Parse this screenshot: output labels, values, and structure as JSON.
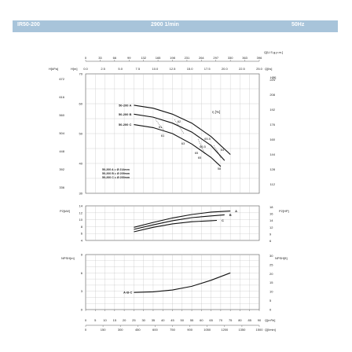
{
  "header": {
    "model": "IR50-200",
    "speed": "2900 1/min",
    "frequency": "50Hz"
  },
  "chart_data": [
    {
      "type": "line",
      "name": "head",
      "top_axis": {
        "label": "Q[U.S.g.p.m.]",
        "ticks": [
          "0",
          "33",
          "66",
          "99",
          "132",
          "165",
          "198",
          "231",
          "264",
          "297",
          "330",
          "363",
          "396"
        ]
      },
      "flow_axis2": {
        "label": "Q[l/s]",
        "ticks": [
          "0.0",
          "2.5",
          "5.0",
          "7.5",
          "10.0",
          "12.5",
          "15.0",
          "17.5",
          "20.0",
          "22.5",
          "25.0"
        ]
      },
      "ylabel_left2": "H[kPa]",
      "ylabel_left": "H[m]",
      "ylabel_right": "H[ft]",
      "yticks": [
        30,
        40,
        50,
        60,
        70
      ],
      "ylim": [
        30,
        70
      ],
      "kpa_ticks": [
        "672",
        "616",
        "560",
        "504",
        "448",
        "392",
        "336"
      ],
      "ft_ticks": [
        "224",
        "208",
        "192",
        "176",
        "160",
        "144",
        "128",
        "112"
      ],
      "efficiency_label": "η [%]",
      "series": [
        {
          "name": "50-200 A",
          "x": [
            25,
            35,
            45,
            55,
            65,
            75
          ],
          "values": [
            59.5,
            58.5,
            56.5,
            53.5,
            49,
            43
          ]
        },
        {
          "name": "50-200 B",
          "x": [
            25,
            35,
            45,
            55,
            65,
            72
          ],
          "values": [
            56.5,
            55.5,
            53.5,
            50.5,
            46,
            41
          ]
        },
        {
          "name": "50-200 C",
          "x": [
            25,
            35,
            45,
            55,
            65,
            70
          ],
          "values": [
            53,
            52,
            50,
            46.5,
            42,
            39
          ]
        }
      ],
      "efficiency_labels": [
        "61",
        "62",
        "65.5",
        "64",
        "61",
        "63",
        "65",
        "58",
        "65.5",
        "65"
      ],
      "impeller_notes": [
        "50-200 A = Ø 214mm",
        "50-200 B = Ø 209mm",
        "50-200 C = Ø 200mm"
      ]
    },
    {
      "type": "line",
      "name": "power",
      "ylabel": "P2[kW]",
      "ylabel_right": "P2[HP]",
      "yticks": [
        "14",
        "12",
        "10",
        "8",
        "6",
        "4"
      ],
      "ylim": [
        4,
        14
      ],
      "right_ticks": [
        "18",
        "16",
        "14",
        "12",
        "9",
        "6"
      ],
      "series": [
        {
          "name": "A",
          "x": [
            25,
            35,
            45,
            55,
            65,
            75
          ],
          "values": [
            7.8,
            9.2,
            10.5,
            11.5,
            12.2,
            12.5
          ]
        },
        {
          "name": "B",
          "x": [
            25,
            35,
            45,
            55,
            65,
            72
          ],
          "values": [
            7.2,
            8.5,
            9.7,
            10.6,
            11.1,
            11.4
          ]
        },
        {
          "name": "C",
          "x": [
            25,
            35,
            45,
            55,
            65,
            68
          ],
          "values": [
            6.5,
            7.8,
            8.8,
            9.4,
            9.7,
            9.8
          ]
        }
      ]
    },
    {
      "type": "line",
      "name": "npsh",
      "ylabel": "NPSH[m]",
      "ylabel_right": "NPSH[ft]",
      "yticks": [
        "9",
        "6",
        "3",
        "0"
      ],
      "ylim": [
        0,
        9
      ],
      "right_ticks": [
        "30",
        "25",
        "20",
        "15",
        "10",
        "5",
        "0"
      ],
      "series": [
        {
          "name": "A-B-C",
          "x": [
            25,
            35,
            45,
            55,
            65,
            75
          ],
          "values": [
            2.8,
            2.9,
            3.2,
            3.8,
            4.8,
            6.0
          ]
        }
      ],
      "xlabel": "Q[m³/h]",
      "xlabel2": "Q[l/min]",
      "xticks": [
        "0",
        "5",
        "10",
        "15",
        "20",
        "25",
        "30",
        "35",
        "40",
        "45",
        "50",
        "55",
        "60",
        "65",
        "70",
        "75",
        "80",
        "85",
        "90"
      ],
      "xlim": [
        0,
        90
      ],
      "lmin_ticks": [
        "0",
        "150",
        "300",
        "450",
        "600",
        "750",
        "900",
        "1050",
        "1200",
        "1350",
        "1500"
      ]
    }
  ]
}
